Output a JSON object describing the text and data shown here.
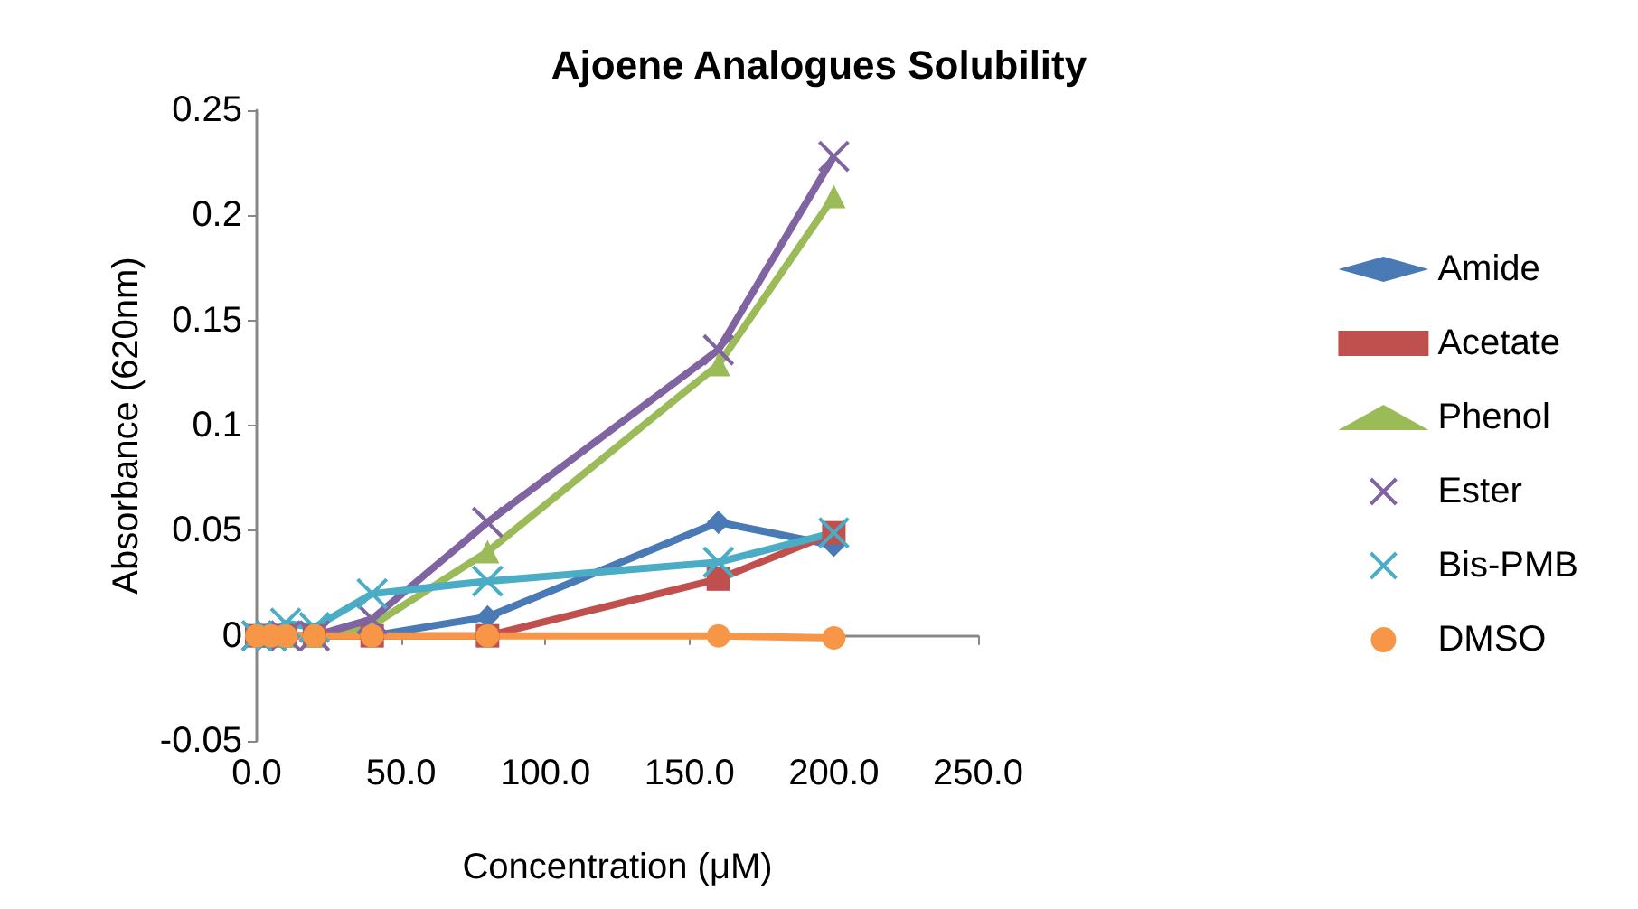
{
  "chart_data": {
    "type": "line",
    "title": "Ajoene Analogues Solubility",
    "xlabel": "Concentration (μM)",
    "ylabel": "Absorbance (620nm)",
    "x": [
      0,
      5,
      10,
      20,
      40,
      80,
      160,
      200
    ],
    "series": [
      {
        "name": "Amide",
        "color": "#4a7ab5",
        "marker": "diamond",
        "values": [
          0,
          0,
          0,
          0,
          0,
          0.009,
          0.054,
          0.043
        ]
      },
      {
        "name": "Acetate",
        "color": "#c0504d",
        "marker": "square",
        "values": [
          0,
          0,
          0,
          0,
          0,
          0,
          0.027,
          0.049
        ]
      },
      {
        "name": "Phenol",
        "color": "#9bbb59",
        "marker": "triangle",
        "values": [
          null,
          null,
          0,
          0,
          0.005,
          0.04,
          0.129,
          0.209
        ]
      },
      {
        "name": "Ester",
        "color": "#8064a2",
        "marker": "cross",
        "values": [
          0,
          0,
          0,
          0,
          0.008,
          0.054,
          0.136,
          0.228
        ]
      },
      {
        "name": "Bis-PMB",
        "color": "#4bacc6",
        "marker": "cross",
        "values": [
          0,
          0,
          0.006,
          0.004,
          0.02,
          0.026,
          0.035,
          0.049
        ]
      },
      {
        "name": "DMSO",
        "color": "#f79646",
        "marker": "circle",
        "values": [
          0,
          0,
          0,
          0,
          0,
          0,
          0,
          -0.001
        ]
      }
    ],
    "xlim": [
      0,
      250
    ],
    "xticks": [
      {
        "value": 0,
        "label": "0.0"
      },
      {
        "value": 50,
        "label": "50.0"
      },
      {
        "value": 100,
        "label": "100.0"
      },
      {
        "value": 150,
        "label": "150.0"
      },
      {
        "value": 200,
        "label": "200.0"
      },
      {
        "value": 250,
        "label": "250.0"
      }
    ],
    "ylim": [
      -0.05,
      0.25
    ],
    "yticks": [
      -0.05,
      0,
      0.05,
      0.1,
      0.15,
      0.2,
      0.25
    ],
    "legend": "right",
    "line_style": "solid"
  }
}
